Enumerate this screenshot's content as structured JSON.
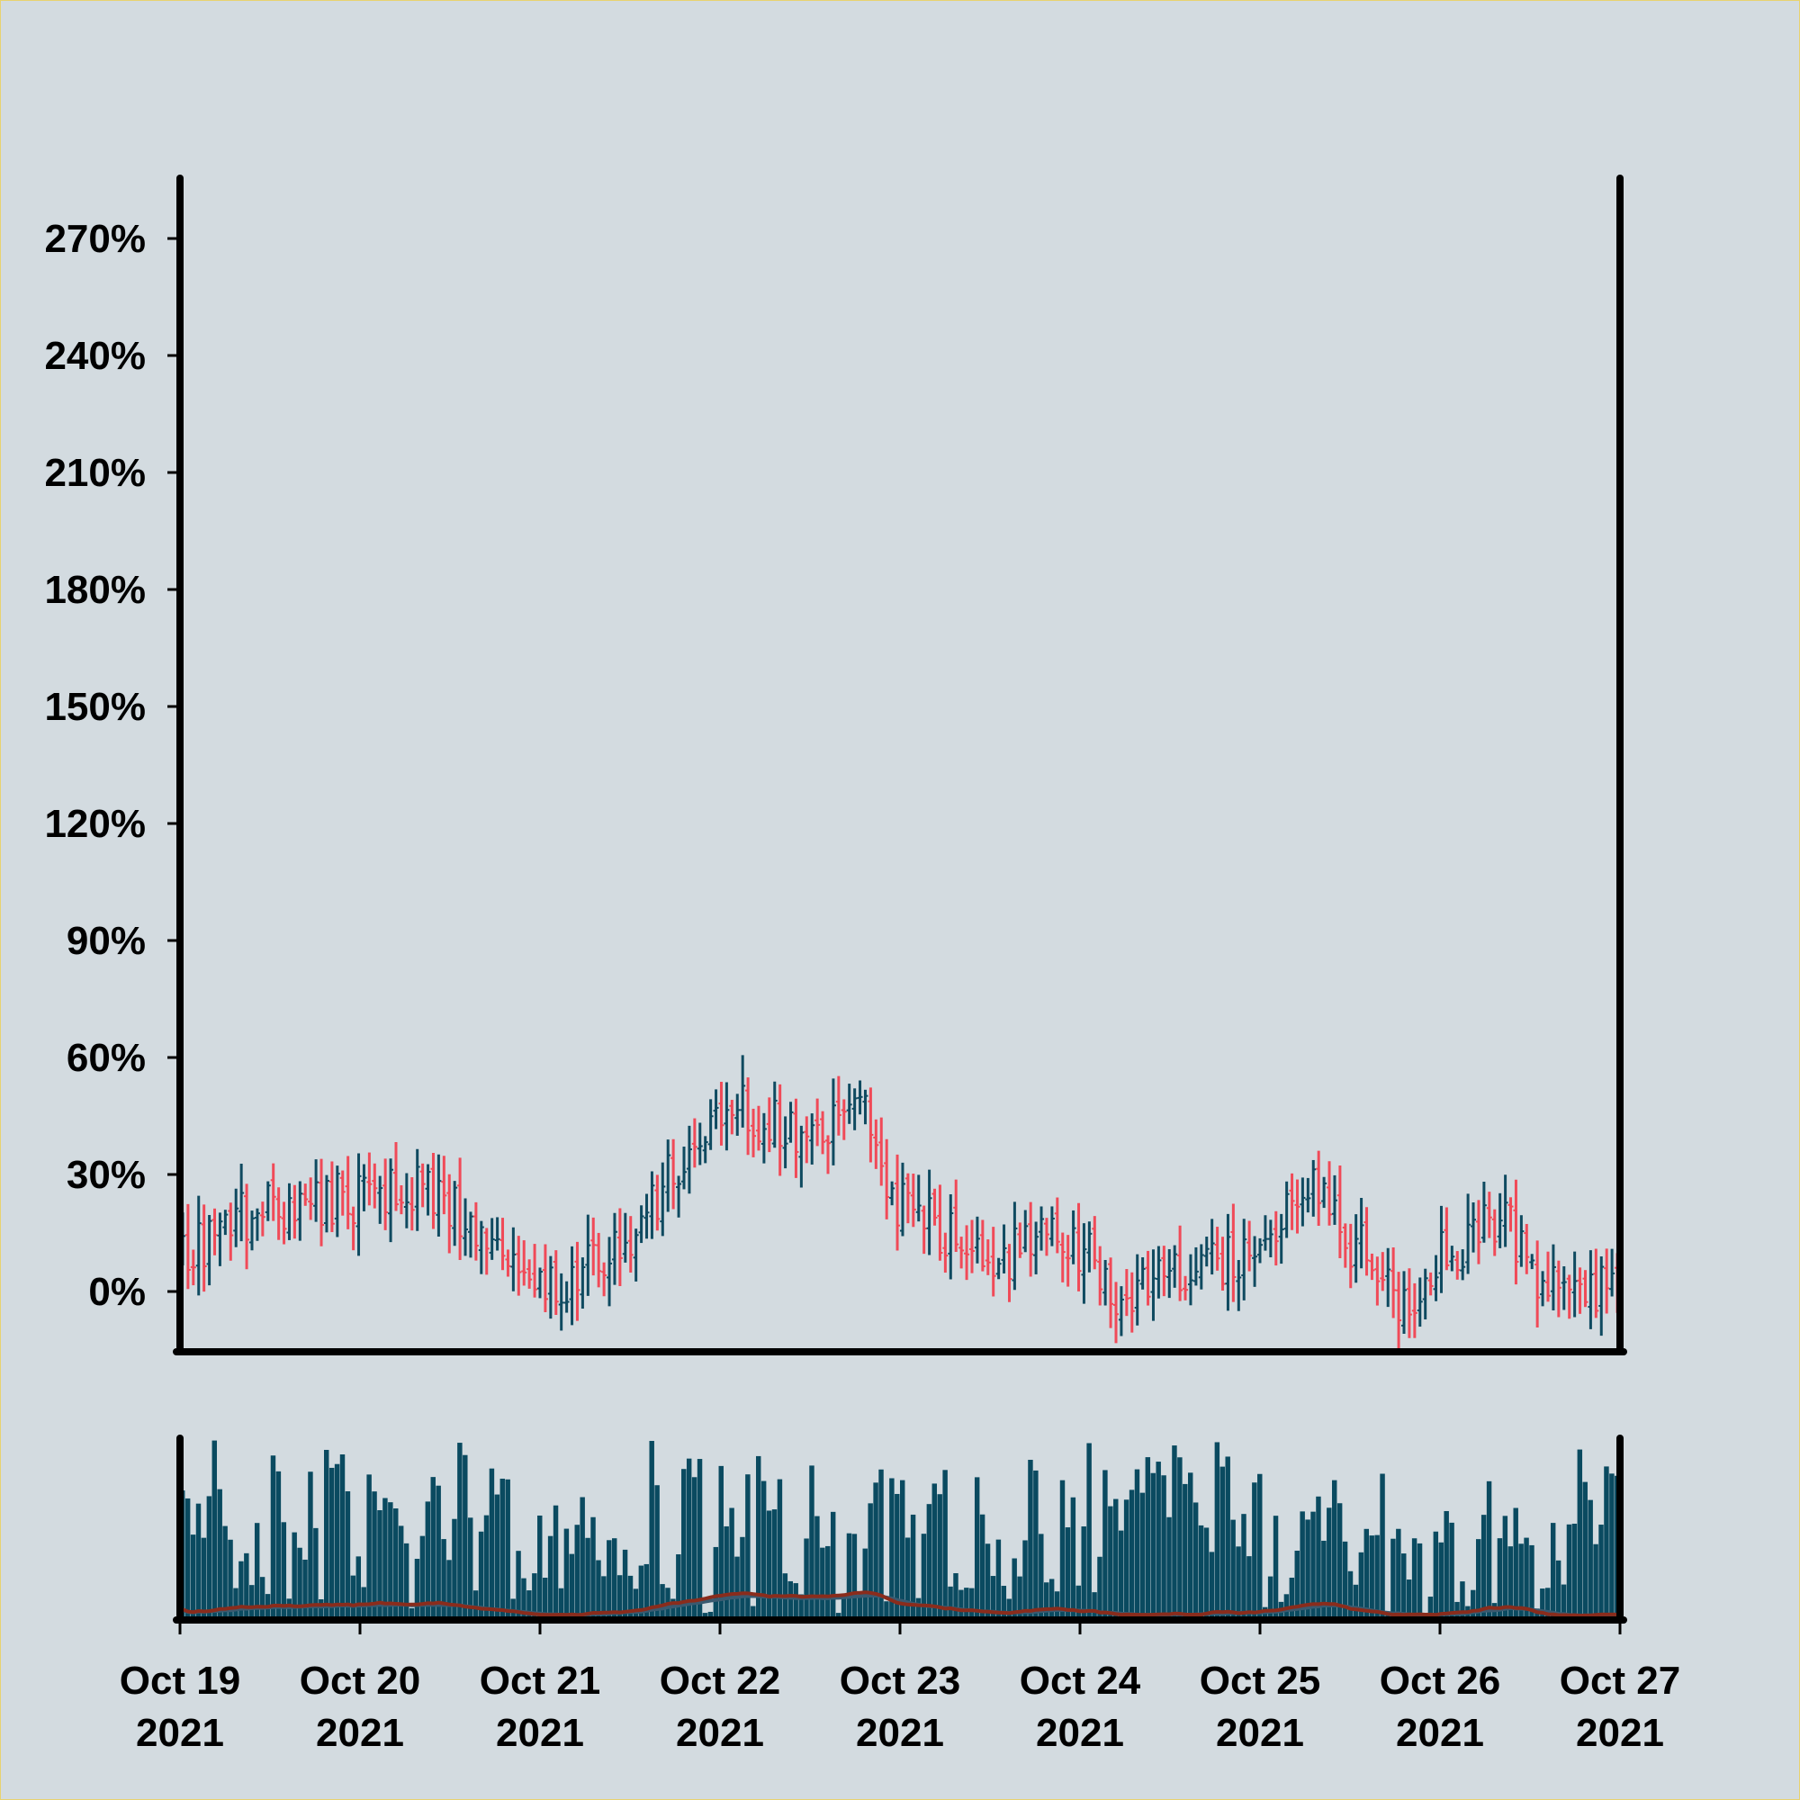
{
  "chart_data": {
    "type": "ohlc",
    "title": "",
    "xlabel": "",
    "ylabel": "",
    "ylim": [
      -10,
      285
    ],
    "y_ticks": [
      0,
      30,
      60,
      90,
      120,
      150,
      180,
      210,
      240,
      270
    ],
    "y_tick_labels": [
      "0%",
      "30%",
      "60%",
      "90%",
      "120%",
      "150%",
      "180%",
      "210%",
      "240%",
      "270%"
    ],
    "x_range": [
      "2021-10-19",
      "2021-10-27"
    ],
    "x_ticks": [
      "2021-10-19",
      "2021-10-20",
      "2021-10-21",
      "2021-10-22",
      "2021-10-23",
      "2021-10-24",
      "2021-10-25",
      "2021-10-26",
      "2021-10-27"
    ],
    "x_tick_labels": [
      {
        "month_day": "Oct 19",
        "year": "2021"
      },
      {
        "month_day": "Oct 20",
        "year": "2021"
      },
      {
        "month_day": "Oct 21",
        "year": "2021"
      },
      {
        "month_day": "Oct 22",
        "year": "2021"
      },
      {
        "month_day": "Oct 23",
        "year": "2021"
      },
      {
        "month_day": "Oct 24",
        "year": "2021"
      },
      {
        "month_day": "Oct 25",
        "year": "2021"
      },
      {
        "month_day": "Oct 26",
        "year": "2021"
      },
      {
        "month_day": "Oct 27",
        "year": "2021"
      }
    ],
    "up_color": "#0f4a60",
    "down_color": "#f04a58",
    "volume_color": "#0a4a60",
    "ma_colors": [
      "#8a2c1c",
      "#3a5a70"
    ],
    "trend_anchors": [
      {
        "x": "2021-10-19 00:00",
        "y": 10
      },
      {
        "x": "2021-10-19 12:00",
        "y": 22
      },
      {
        "x": "2021-10-20 00:00",
        "y": 24
      },
      {
        "x": "2021-10-20 08:00",
        "y": 28
      },
      {
        "x": "2021-10-20 16:00",
        "y": 17
      },
      {
        "x": "2021-10-21 00:00",
        "y": 2
      },
      {
        "x": "2021-10-21 12:00",
        "y": 10
      },
      {
        "x": "2021-10-21 18:00",
        "y": 32
      },
      {
        "x": "2021-10-22 00:00",
        "y": 47
      },
      {
        "x": "2021-10-22 12:00",
        "y": 42
      },
      {
        "x": "2021-10-22 18:00",
        "y": 47
      },
      {
        "x": "2021-10-23 00:00",
        "y": 22
      },
      {
        "x": "2021-10-23 12:00",
        "y": 7
      },
      {
        "x": "2021-10-23 20:00",
        "y": 18
      },
      {
        "x": "2021-10-24 06:00",
        "y": 0
      },
      {
        "x": "2021-10-24 16:00",
        "y": 8
      },
      {
        "x": "2021-10-25 00:00",
        "y": 10
      },
      {
        "x": "2021-10-25 06:00",
        "y": 30
      },
      {
        "x": "2021-10-25 12:00",
        "y": 12
      },
      {
        "x": "2021-10-25 20:00",
        "y": -3
      },
      {
        "x": "2021-10-26 00:00",
        "y": 10
      },
      {
        "x": "2021-10-26 08:00",
        "y": 17
      },
      {
        "x": "2021-10-26 16:00",
        "y": 0
      },
      {
        "x": "2021-10-27 00:00",
        "y": 3
      }
    ],
    "candle_count": 270,
    "volume_range": [
      0,
      1
    ]
  }
}
